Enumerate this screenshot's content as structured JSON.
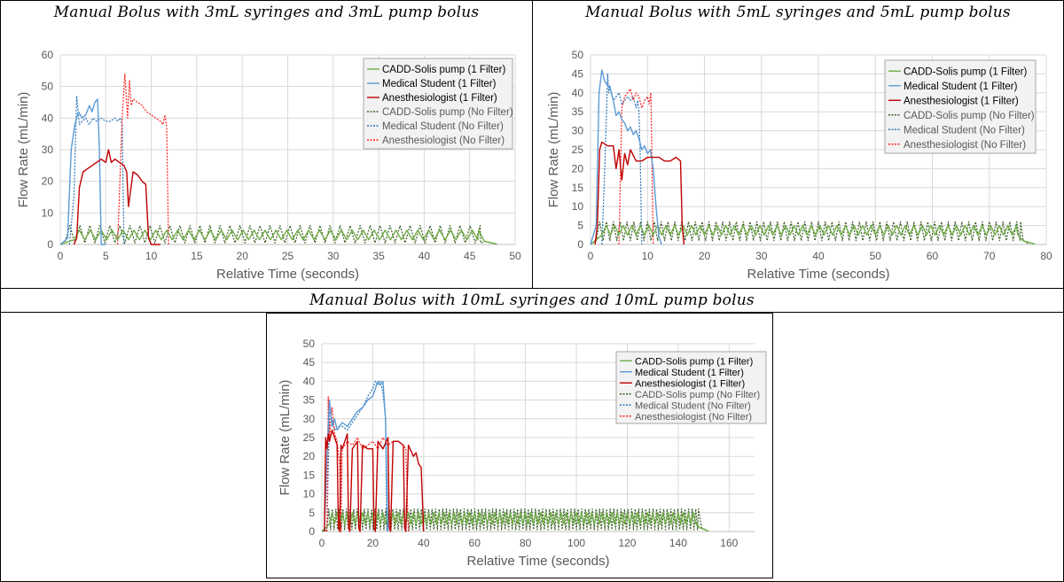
{
  "titles": [
    "Manual Bolus with 3mL syringes and 3mL pump bolus",
    "Manual Bolus with 5mL syringes and 5mL pump bolus",
    "Manual Bolus with 10mL syringes and 10mL pump bolus"
  ],
  "colors": {
    "pump": "#70ad47",
    "pump_dotted": "#3b5f28",
    "student": "#5b9bd5",
    "student_dotted": "#2e75b6",
    "anesth": "#c00000",
    "anesth_dotted": "#ff2020",
    "grid": "#d9d9d9",
    "axis_text": "#595959"
  },
  "chart_data": [
    {
      "type": "line",
      "title": "Manual Bolus with 3mL syringes and 3mL pump bolus",
      "xlabel": "Relative Time (seconds)",
      "ylabel": "Flow Rate (mL/min)",
      "xlim": [
        0,
        50
      ],
      "ylim": [
        0,
        60
      ],
      "xticks": [
        0,
        5,
        10,
        15,
        20,
        25,
        30,
        35,
        40,
        45,
        50
      ],
      "yticks": [
        0,
        10,
        20,
        30,
        40,
        50,
        60
      ],
      "grid": true,
      "legend_position": "top-right",
      "series": [
        {
          "name": "CADD-Solis pump (1 Filter)",
          "style": "solid",
          "color": "pump",
          "pattern": "pump",
          "start": 1.5,
          "end": 46.0,
          "period": 1.2,
          "low": 1.5,
          "high": 4.5,
          "ramp_end": 48.0
        },
        {
          "name": "Medical Student (1 Filter)",
          "style": "solid",
          "color": "student",
          "x": [
            0,
            0.8,
            1.2,
            1.6,
            2.0,
            2.4,
            2.8,
            3.2,
            3.5,
            3.8,
            4.1,
            4.3,
            4.5,
            5.0
          ],
          "y": [
            0,
            2,
            30,
            38,
            42,
            40,
            41,
            44,
            42,
            45,
            46,
            30,
            0,
            0
          ]
        },
        {
          "name": "Anesthesiologist  (1 Filter)",
          "style": "solid",
          "color": "anesth",
          "x": [
            1.5,
            1.8,
            2.1,
            2.5,
            3.0,
            3.5,
            4.0,
            4.5,
            5.0,
            5.3,
            5.6,
            6.0,
            6.5,
            7.0,
            7.3,
            7.5,
            8.0,
            8.5,
            9.0,
            9.4,
            9.7,
            10.0,
            11.0
          ],
          "y": [
            0,
            2,
            18,
            23,
            24,
            25,
            26,
            27,
            26,
            30,
            26,
            27,
            26,
            25,
            23,
            12,
            23,
            22,
            20,
            19,
            2,
            0,
            0
          ]
        },
        {
          "name": "CADD-Solis pump (No Filter)",
          "style": "dotted",
          "color": "pump_dotted",
          "pattern": "pump",
          "start": 0.5,
          "end": 46.2,
          "period": 1.1,
          "low": 0.5,
          "high": 6.0,
          "ramp_end": 48.0
        },
        {
          "name": "Medical Student (No Filter)",
          "style": "dotted",
          "color": "student_dotted",
          "x": [
            1.0,
            1.5,
            1.8,
            2.1,
            2.4,
            2.8,
            3.2,
            3.6,
            4.0,
            4.5,
            5.0,
            5.5,
            6.0,
            6.3,
            6.6,
            6.8,
            7.0
          ],
          "y": [
            0,
            15,
            47,
            38,
            39,
            40,
            38,
            40,
            39,
            40,
            39,
            39,
            40,
            39,
            40,
            38,
            0
          ]
        },
        {
          "name": "Anesthesiologist  (No Filter)",
          "style": "dotted",
          "color": "anesth_dotted",
          "x": [
            6.3,
            6.8,
            7.1,
            7.4,
            7.6,
            7.8,
            8.0,
            8.5,
            9.0,
            9.5,
            10.0,
            10.5,
            11.0,
            11.3,
            11.5,
            11.7,
            11.9
          ],
          "y": [
            0,
            40,
            54,
            40,
            52,
            44,
            46,
            45,
            44,
            42,
            41,
            40,
            39,
            38,
            41,
            37,
            0
          ]
        }
      ]
    },
    {
      "type": "line",
      "title": "Manual Bolus with 5mL syringes and 5mL pump bolus",
      "xlabel": "Relative Time (seconds)",
      "ylabel": "Flow Rate (mL/min)",
      "xlim": [
        0,
        80
      ],
      "ylim": [
        0,
        50
      ],
      "xticks": [
        0,
        10,
        20,
        30,
        40,
        50,
        60,
        70,
        80
      ],
      "yticks": [
        0,
        5,
        10,
        15,
        20,
        25,
        30,
        35,
        40,
        45,
        50
      ],
      "grid": true,
      "legend_position": "top-right",
      "series": [
        {
          "name": "CADD-Solis pump (1 Filter)",
          "style": "solid",
          "color": "pump",
          "pattern": "pump",
          "start": 2.0,
          "end": 75.0,
          "period": 1.5,
          "low": 2.5,
          "high": 5.0,
          "ramp_end": 78.0
        },
        {
          "name": "Medical Student (1 Filter)",
          "style": "solid",
          "color": "student",
          "x": [
            0,
            1.0,
            1.5,
            2.0,
            2.5,
            3.0,
            3.5,
            4.0,
            4.5,
            5.0,
            5.5,
            6.0,
            6.5,
            7.0,
            7.5,
            8.0,
            8.5,
            9.0,
            9.5,
            10.0,
            10.5,
            11.0,
            11.5,
            12.0,
            12.5
          ],
          "y": [
            0,
            5,
            40,
            46,
            43,
            42,
            41,
            38,
            34,
            35,
            33,
            32,
            30,
            31,
            29,
            30,
            28,
            25,
            26,
            24,
            25,
            20,
            10,
            2,
            0
          ]
        },
        {
          "name": "Anesthesiologist  (1 Filter)",
          "style": "solid",
          "color": "anesth",
          "x": [
            0.8,
            1.2,
            1.6,
            2.0,
            3.0,
            4.0,
            4.5,
            5.0,
            5.5,
            6.0,
            6.5,
            7.0,
            8.0,
            9.0,
            10.0,
            11.0,
            12.0,
            13.0,
            14.0,
            15.0,
            15.8,
            16.1,
            16.4
          ],
          "y": [
            0,
            5,
            25,
            27,
            26,
            26,
            20,
            25,
            17,
            24,
            21,
            25,
            22,
            22,
            23,
            23,
            23,
            22,
            22,
            23,
            22,
            5,
            0
          ]
        },
        {
          "name": "CADD-Solis pump (No Filter)",
          "style": "dotted",
          "color": "pump_dotted",
          "pattern": "pump",
          "start": 1.0,
          "end": 75.5,
          "period": 1.2,
          "low": 1.0,
          "high": 6.0,
          "ramp_end": 77.0
        },
        {
          "name": "Medical Student (No Filter)",
          "style": "dotted",
          "color": "student_dotted",
          "x": [
            2.0,
            2.5,
            3.0,
            3.2,
            3.4,
            3.6,
            4.0,
            4.5,
            5.0,
            5.5,
            6.0,
            6.5,
            7.0,
            7.5,
            8.0,
            8.3,
            8.5,
            8.7,
            9.0
          ],
          "y": [
            0,
            20,
            45,
            40,
            42,
            40,
            38,
            39,
            40,
            37,
            38,
            39,
            38,
            39,
            36,
            38,
            35,
            25,
            0
          ]
        },
        {
          "name": "Anesthesiologist  (No Filter)",
          "style": "dotted",
          "color": "anesth_dotted",
          "x": [
            5.0,
            5.5,
            6.0,
            6.5,
            7.0,
            7.5,
            8.0,
            8.5,
            9.0,
            9.5,
            10.0,
            10.3,
            10.6,
            11.0
          ],
          "y": [
            0,
            36,
            39,
            40,
            41,
            38,
            40,
            39,
            36,
            38,
            39,
            37,
            40,
            0
          ]
        }
      ]
    },
    {
      "type": "line",
      "title": "Manual Bolus with 10mL syringes and 10mL pump bolus",
      "xlabel": "Relative Time (seconds)",
      "ylabel": "Flow Rate (mL/min)",
      "xlim": [
        0,
        170
      ],
      "ylim": [
        0,
        50
      ],
      "xticks": [
        0,
        20,
        40,
        60,
        80,
        100,
        120,
        140,
        160
      ],
      "yticks": [
        0,
        5,
        10,
        15,
        20,
        25,
        30,
        35,
        40,
        45,
        50
      ],
      "grid": true,
      "legend_position": "top-right",
      "series": [
        {
          "name": "CADD-Solis pump (1 Filter)",
          "style": "solid",
          "color": "pump",
          "pattern": "pump",
          "start": 3.0,
          "end": 147.0,
          "period": 2.0,
          "low": 2.0,
          "high": 5.0,
          "ramp_end": 152.0
        },
        {
          "name": "Medical Student (1 Filter)",
          "style": "solid",
          "color": "student",
          "x": [
            1.0,
            2.0,
            3.0,
            4.0,
            5.0,
            6.0,
            8.0,
            10.0,
            12.0,
            14.0,
            16.0,
            18.0,
            20.0,
            22.0,
            23.0,
            24.0,
            25.0,
            26.0
          ],
          "y": [
            0,
            20,
            35,
            28,
            30,
            27,
            29,
            28,
            30,
            32,
            33,
            35,
            36,
            40,
            39,
            40,
            30,
            0
          ]
        },
        {
          "name": "Anesthesiologist  (1 Filter)",
          "style": "solid",
          "color": "anesth",
          "x": [
            1.0,
            1.5,
            2.0,
            2.5,
            3.0,
            4.0,
            5.0,
            6.0,
            6.5,
            7.0,
            7.5,
            8.0,
            9.0,
            10.0,
            10.5,
            11.0,
            12.0,
            13.0,
            14.0,
            14.5,
            15.0,
            16.0,
            18.0,
            20.0,
            20.5,
            21.0,
            22.0,
            24.0,
            26.0,
            26.5,
            27.0,
            28.0,
            30.0,
            32.0,
            32.5,
            33.0,
            34.0,
            36.0,
            37.0,
            38.0,
            39.0,
            40.0
          ],
          "y": [
            0,
            25,
            22,
            26,
            24,
            27,
            25,
            23,
            1,
            0,
            23,
            22,
            24,
            26,
            1,
            0,
            22,
            23,
            24,
            1,
            0,
            23,
            22,
            22,
            1,
            0,
            24,
            22,
            25,
            1,
            0,
            24,
            24,
            23,
            1,
            0,
            23,
            20,
            21,
            18,
            17,
            0
          ]
        },
        {
          "name": "CADD-Solis pump (No Filter)",
          "style": "dotted",
          "color": "pump_dotted",
          "pattern": "pump",
          "start": 2.0,
          "end": 148.0,
          "period": 1.4,
          "low": 0.5,
          "high": 6.0,
          "ramp_end": 152.0
        },
        {
          "name": "Medical Student (No Filter)",
          "style": "dotted",
          "color": "student_dotted",
          "x": [
            2.0,
            3.0,
            4.0,
            5.0,
            6.0,
            8.0,
            10.0,
            12.0,
            14.0,
            16.0,
            18.0,
            20.0,
            21.0,
            22.0,
            23.0,
            24.0,
            25.0,
            25.5
          ],
          "y": [
            0,
            32,
            30,
            27,
            28,
            28,
            27,
            29,
            31,
            33,
            36,
            38,
            40,
            39,
            40,
            37,
            30,
            0
          ]
        },
        {
          "name": "Anesthesiologist  (No Filter)",
          "style": "dotted",
          "color": "anesth_dotted",
          "x": [
            2.0,
            2.5,
            3.0,
            3.5,
            4.0,
            5.0,
            6.0,
            7.0,
            7.5,
            8.0,
            9.0,
            10.0,
            12.0,
            14.0,
            16.0,
            18.0,
            20.0,
            22.0,
            24.0,
            26.0,
            28.0,
            30.0,
            32.0,
            33.0,
            33.5,
            34.0
          ],
          "y": [
            0,
            36,
            24,
            30,
            33,
            26,
            24,
            18,
            0,
            22,
            23,
            24,
            23,
            25,
            22,
            23,
            24,
            22,
            25,
            23,
            24,
            24,
            23,
            22,
            10,
            0
          ]
        }
      ]
    }
  ]
}
